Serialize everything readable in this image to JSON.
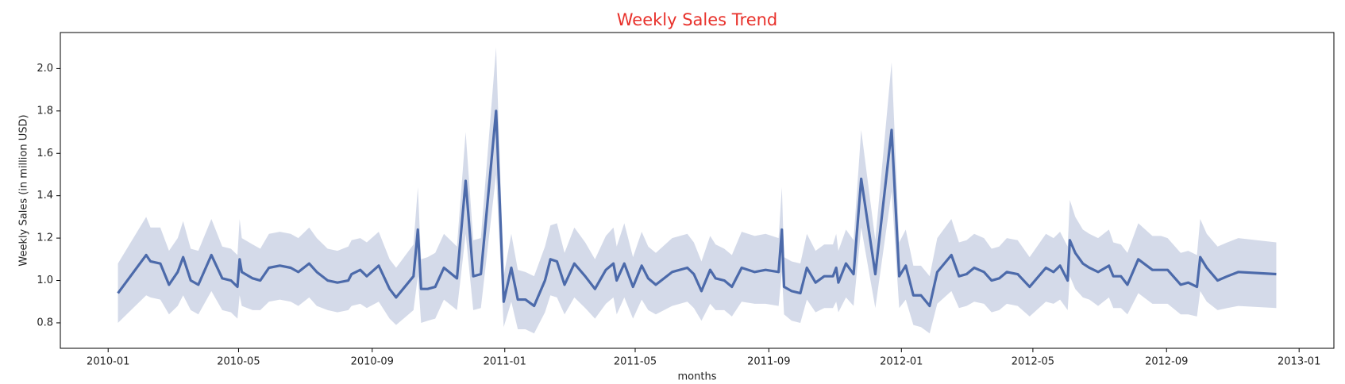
{
  "chart_data": {
    "type": "line",
    "title": "Weekly Sales Trend",
    "x_label": "months",
    "y_label": "Weekly Sales (in million USD)",
    "xlim": [
      "2009-11-18",
      "2013-02-02"
    ],
    "ylim": [
      0.68,
      2.17
    ],
    "xticks": [
      {
        "value": "2010-01-01",
        "label": "2010-01"
      },
      {
        "value": "2010-05-01",
        "label": "2010-05"
      },
      {
        "value": "2010-09-01",
        "label": "2010-09"
      },
      {
        "value": "2011-01-01",
        "label": "2011-01"
      },
      {
        "value": "2011-05-01",
        "label": "2011-05"
      },
      {
        "value": "2011-09-01",
        "label": "2011-09"
      },
      {
        "value": "2012-01-01",
        "label": "2012-01"
      },
      {
        "value": "2012-05-01",
        "label": "2012-05"
      },
      {
        "value": "2012-09-01",
        "label": "2012-09"
      },
      {
        "value": "2013-01-01",
        "label": "2013-01"
      }
    ],
    "yticks": [
      0.8,
      {
        "value": 1,
        "label": "1.0"
      },
      1.2,
      1.4,
      1.6,
      1.8,
      {
        "value": 2,
        "label": "2.0"
      }
    ],
    "grid": false,
    "x": [
      "2010-01-10",
      "2010-02-05",
      "2010-02-09",
      "2010-02-18",
      "2010-02-26",
      "2010-03-06",
      "2010-03-11",
      "2010-03-18",
      "2010-03-25",
      "2010-04-06",
      "2010-04-16",
      "2010-04-24",
      "2010-04-30",
      "2010-05-02",
      "2010-05-04",
      "2010-05-14",
      "2010-05-21",
      "2010-05-29",
      "2010-06-08",
      "2010-06-18",
      "2010-06-25",
      "2010-07-05",
      "2010-07-12",
      "2010-07-22",
      "2010-07-31",
      "2010-08-10",
      "2010-08-13",
      "2010-08-21",
      "2010-08-27",
      "2010-09-07",
      "2010-09-17",
      "2010-09-23",
      "2010-10-09",
      "2010-10-13",
      "2010-10-16",
      "2010-10-22",
      "2010-10-29",
      "2010-11-06",
      "2010-11-18",
      "2010-11-26",
      "2010-12-03",
      "2010-12-10",
      "2010-12-24",
      "2010-12-31",
      "2011-01-07",
      "2011-01-13",
      "2011-01-20",
      "2011-01-28",
      "2011-02-07",
      "2011-02-12",
      "2011-02-18",
      "2011-02-25",
      "2011-03-06",
      "2011-03-16",
      "2011-03-25",
      "2011-04-04",
      "2011-04-11",
      "2011-04-14",
      "2011-04-21",
      "2011-04-29",
      "2011-05-07",
      "2011-05-13",
      "2011-05-20",
      "2011-06-04",
      "2011-06-18",
      "2011-06-24",
      "2011-07-01",
      "2011-07-09",
      "2011-07-14",
      "2011-07-22",
      "2011-07-29",
      "2011-08-07",
      "2011-08-19",
      "2011-08-29",
      "2011-09-10",
      "2011-09-13",
      "2011-09-15",
      "2011-09-22",
      "2011-09-30",
      "2011-10-06",
      "2011-10-14",
      "2011-10-22",
      "2011-10-30",
      "2011-11-02",
      "2011-11-04",
      "2011-11-11",
      "2011-11-18",
      "2011-11-25",
      "2011-12-08",
      "2011-12-23",
      "2011-12-30",
      "2012-01-05",
      "2012-01-12",
      "2012-01-19",
      "2012-01-27",
      "2012-02-03",
      "2012-02-16",
      "2012-02-23",
      "2012-03-01",
      "2012-03-08",
      "2012-03-17",
      "2012-03-24",
      "2012-03-31",
      "2012-04-07",
      "2012-04-17",
      "2012-04-28",
      "2012-05-13",
      "2012-05-20",
      "2012-05-26",
      "2012-06-02",
      "2012-06-04",
      "2012-06-09",
      "2012-06-16",
      "2012-06-22",
      "2012-06-30",
      "2012-07-10",
      "2012-07-14",
      "2012-07-21",
      "2012-07-27",
      "2012-08-06",
      "2012-08-19",
      "2012-08-27",
      "2012-09-02",
      "2012-09-14",
      "2012-09-21",
      "2012-09-29",
      "2012-10-02",
      "2012-10-08",
      "2012-10-18",
      "2012-10-27",
      "2012-11-06",
      "2012-12-11"
    ],
    "series": [
      {
        "color": "#4c6aaa",
        "band_color": "#c9d1e4",
        "values": [
          0.94,
          1.12,
          1.09,
          1.08,
          0.98,
          1.04,
          1.11,
          1.0,
          0.98,
          1.12,
          1.01,
          1.0,
          0.97,
          1.1,
          1.04,
          1.01,
          1.0,
          1.06,
          1.07,
          1.06,
          1.04,
          1.08,
          1.04,
          1.0,
          0.99,
          1.0,
          1.03,
          1.05,
          1.02,
          1.07,
          0.96,
          0.92,
          1.02,
          1.24,
          0.96,
          0.96,
          0.97,
          1.06,
          1.01,
          1.47,
          1.02,
          1.03,
          1.8,
          0.9,
          1.06,
          0.91,
          0.91,
          0.88,
          1.0,
          1.1,
          1.09,
          0.98,
          1.08,
          1.02,
          0.96,
          1.05,
          1.08,
          1.0,
          1.08,
          0.97,
          1.07,
          1.01,
          0.98,
          1.04,
          1.06,
          1.03,
          0.95,
          1.05,
          1.01,
          1.0,
          0.97,
          1.06,
          1.04,
          1.05,
          1.04,
          1.24,
          0.97,
          0.95,
          0.94,
          1.06,
          0.99,
          1.02,
          1.02,
          1.06,
          0.99,
          1.08,
          1.03,
          1.48,
          1.03,
          1.71,
          1.02,
          1.07,
          0.93,
          0.93,
          0.88,
          1.04,
          1.12,
          1.02,
          1.03,
          1.06,
          1.04,
          1.0,
          1.01,
          1.04,
          1.03,
          0.97,
          1.06,
          1.04,
          1.07,
          1.0,
          1.19,
          1.13,
          1.08,
          1.06,
          1.04,
          1.07,
          1.02,
          1.02,
          0.98,
          1.1,
          1.05,
          1.05,
          1.05,
          0.98,
          0.99,
          0.97,
          1.11,
          1.06,
          1.0,
          1.02,
          1.04,
          1.03
        ],
        "lower": [
          0.8,
          0.93,
          0.92,
          0.91,
          0.84,
          0.88,
          0.93,
          0.86,
          0.84,
          0.95,
          0.86,
          0.85,
          0.82,
          0.93,
          0.88,
          0.86,
          0.86,
          0.9,
          0.91,
          0.9,
          0.88,
          0.92,
          0.88,
          0.86,
          0.85,
          0.86,
          0.88,
          0.89,
          0.87,
          0.9,
          0.82,
          0.79,
          0.86,
          1.02,
          0.8,
          0.81,
          0.82,
          0.91,
          0.86,
          1.22,
          0.86,
          0.87,
          1.5,
          0.78,
          0.9,
          0.77,
          0.77,
          0.75,
          0.85,
          0.93,
          0.92,
          0.84,
          0.92,
          0.87,
          0.82,
          0.89,
          0.92,
          0.84,
          0.92,
          0.82,
          0.91,
          0.86,
          0.84,
          0.88,
          0.9,
          0.87,
          0.81,
          0.89,
          0.86,
          0.86,
          0.83,
          0.9,
          0.89,
          0.89,
          0.88,
          1.04,
          0.84,
          0.81,
          0.8,
          0.91,
          0.85,
          0.87,
          0.87,
          0.9,
          0.85,
          0.92,
          0.88,
          1.25,
          0.87,
          1.42,
          0.87,
          0.91,
          0.79,
          0.78,
          0.75,
          0.89,
          0.95,
          0.87,
          0.88,
          0.9,
          0.89,
          0.85,
          0.86,
          0.89,
          0.88,
          0.83,
          0.9,
          0.89,
          0.91,
          0.86,
          1.02,
          0.96,
          0.92,
          0.91,
          0.88,
          0.92,
          0.87,
          0.87,
          0.84,
          0.94,
          0.89,
          0.89,
          0.89,
          0.84,
          0.84,
          0.83,
          0.95,
          0.9,
          0.86,
          0.87,
          0.88,
          0.87
        ],
        "upper": [
          1.08,
          1.3,
          1.25,
          1.25,
          1.14,
          1.2,
          1.28,
          1.15,
          1.14,
          1.29,
          1.16,
          1.15,
          1.12,
          1.29,
          1.2,
          1.17,
          1.15,
          1.22,
          1.23,
          1.22,
          1.2,
          1.25,
          1.2,
          1.15,
          1.14,
          1.16,
          1.19,
          1.2,
          1.18,
          1.23,
          1.1,
          1.06,
          1.17,
          1.44,
          1.1,
          1.11,
          1.13,
          1.22,
          1.16,
          1.7,
          1.19,
          1.2,
          2.1,
          1.02,
          1.22,
          1.05,
          1.04,
          1.02,
          1.16,
          1.26,
          1.27,
          1.13,
          1.25,
          1.18,
          1.1,
          1.21,
          1.25,
          1.16,
          1.27,
          1.11,
          1.23,
          1.16,
          1.13,
          1.2,
          1.22,
          1.18,
          1.09,
          1.21,
          1.17,
          1.15,
          1.12,
          1.23,
          1.21,
          1.22,
          1.2,
          1.44,
          1.11,
          1.09,
          1.08,
          1.22,
          1.14,
          1.17,
          1.17,
          1.22,
          1.14,
          1.24,
          1.19,
          1.71,
          1.19,
          2.03,
          1.18,
          1.24,
          1.07,
          1.07,
          1.02,
          1.2,
          1.29,
          1.18,
          1.19,
          1.22,
          1.2,
          1.15,
          1.16,
          1.2,
          1.19,
          1.11,
          1.22,
          1.2,
          1.23,
          1.16,
          1.38,
          1.3,
          1.24,
          1.22,
          1.2,
          1.24,
          1.18,
          1.17,
          1.13,
          1.27,
          1.21,
          1.21,
          1.2,
          1.13,
          1.14,
          1.12,
          1.29,
          1.22,
          1.16,
          1.18,
          1.2,
          1.18
        ]
      }
    ]
  }
}
